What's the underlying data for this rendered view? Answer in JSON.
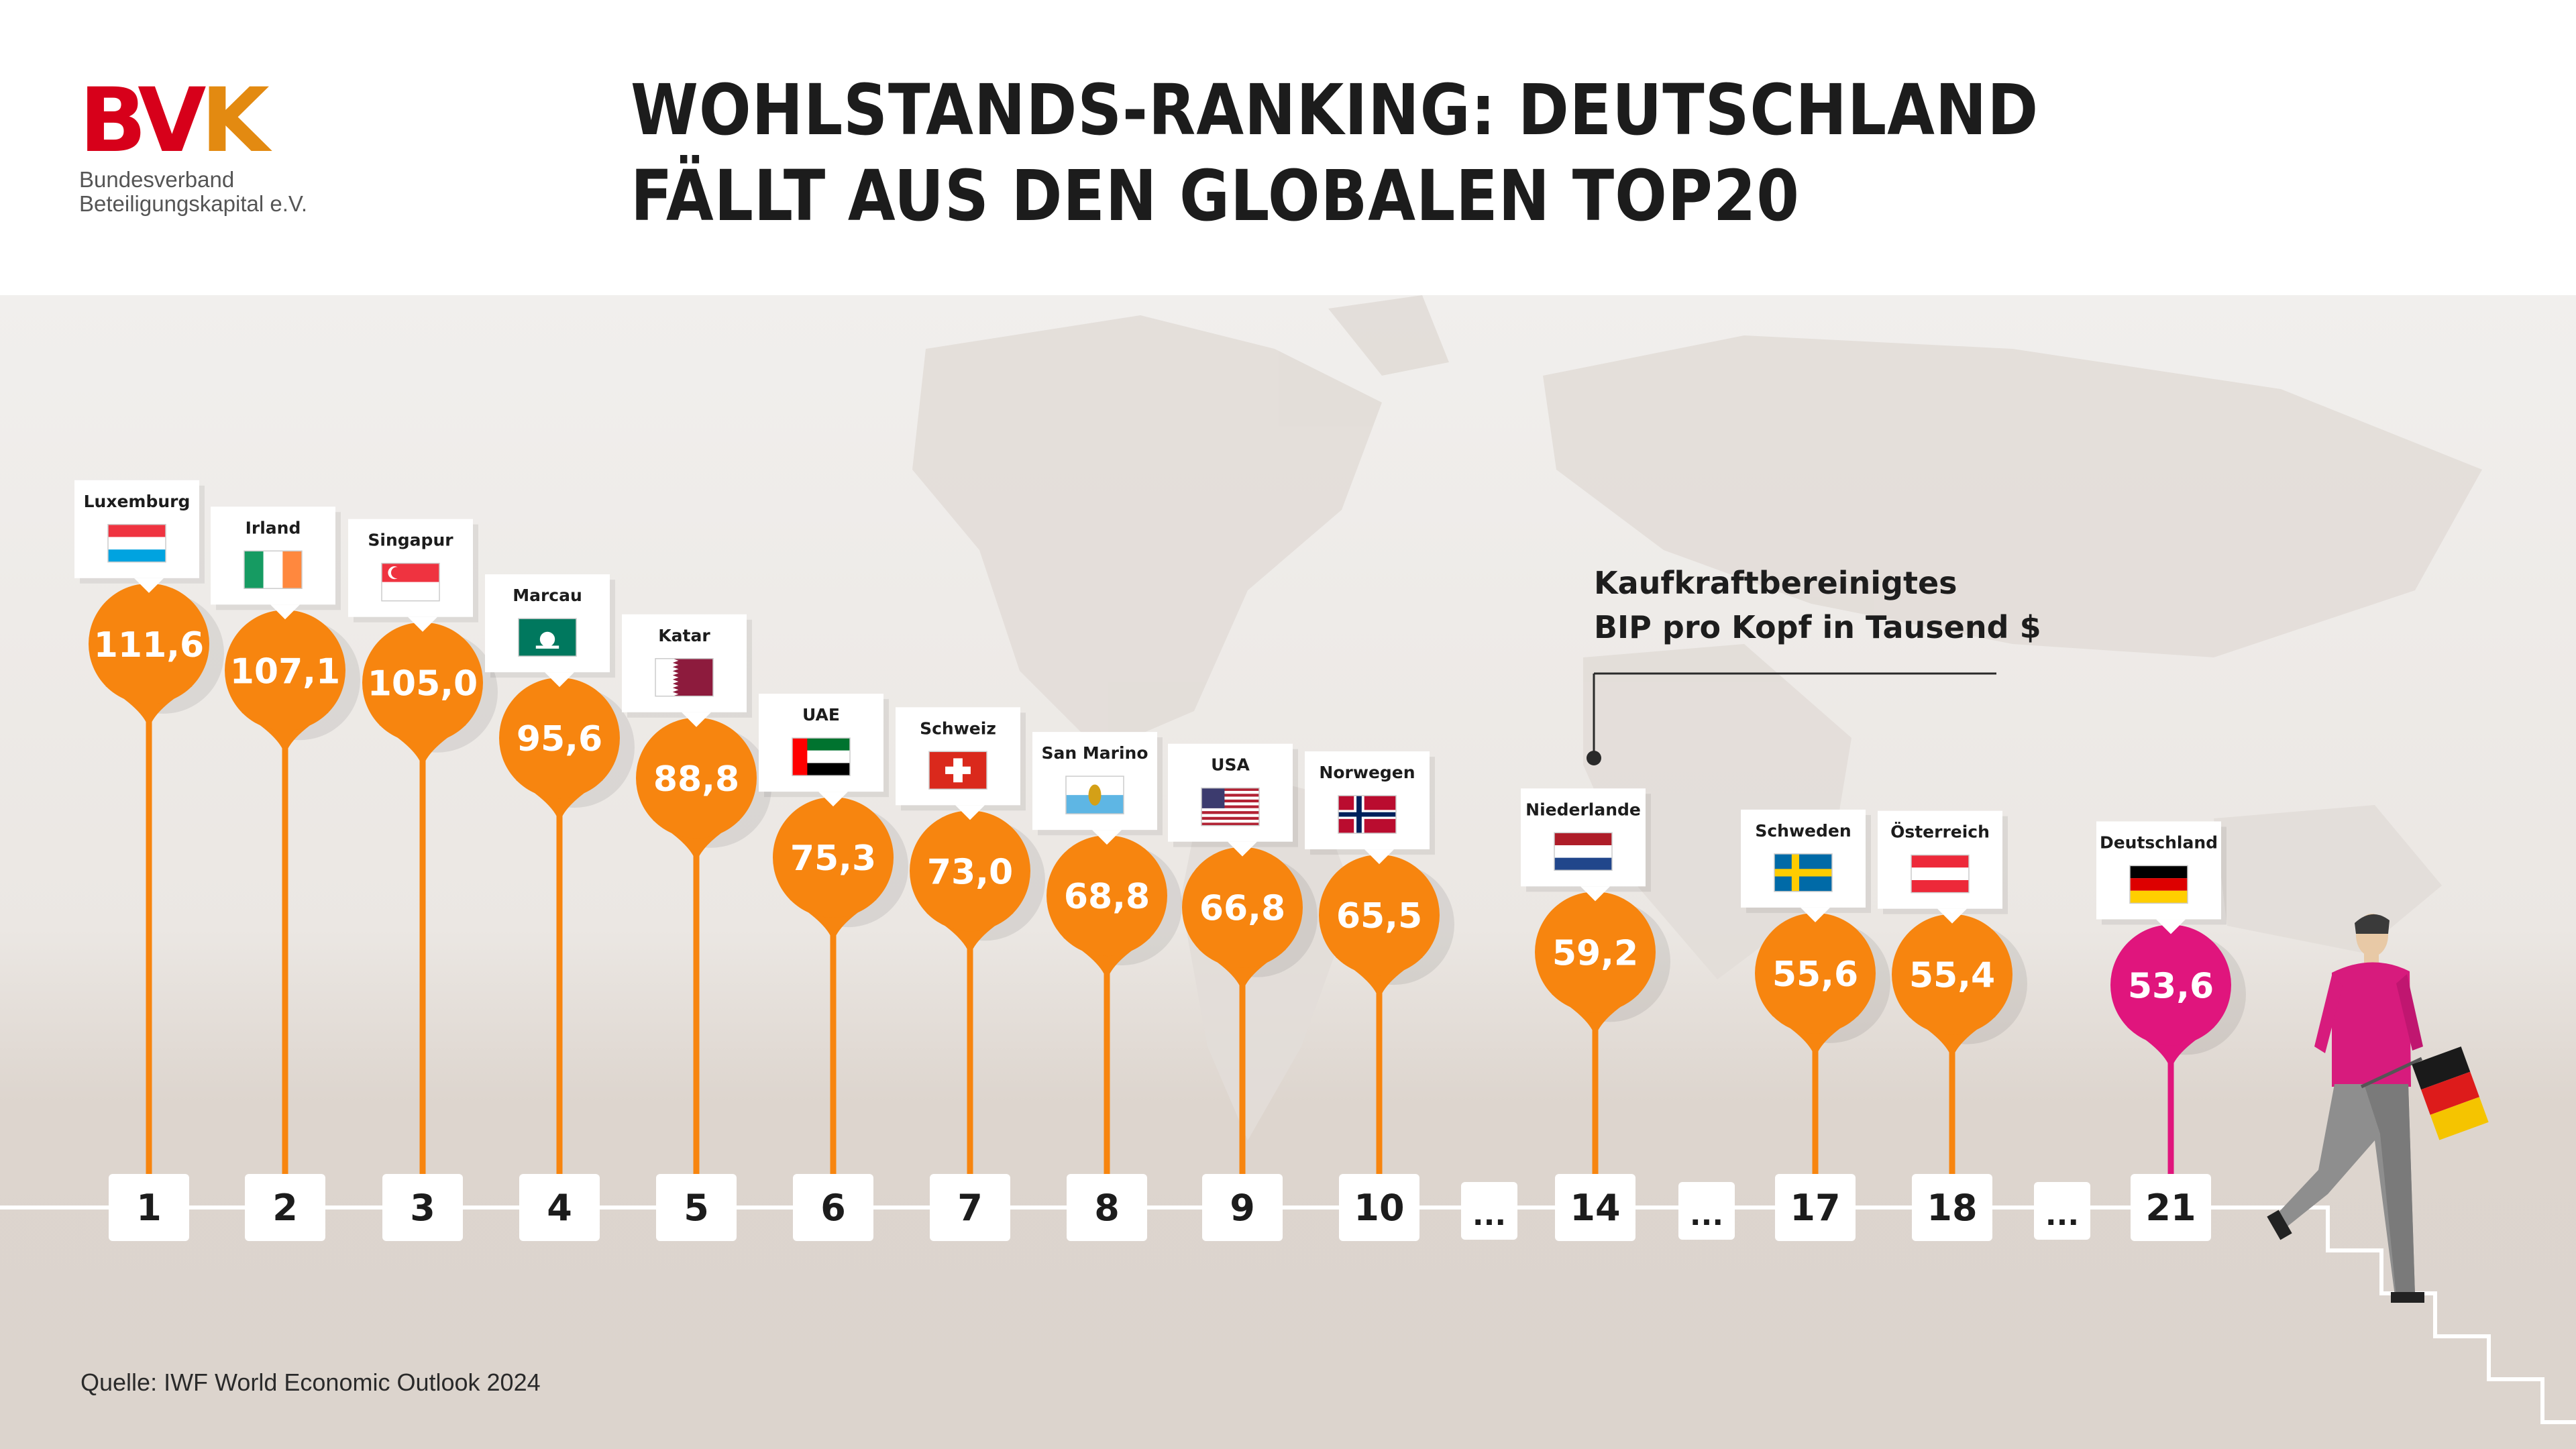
{
  "header": {
    "logo_text": "BVK",
    "logo_line1": "Bundesverband",
    "logo_line2": "Beteiligungskapital e.V.",
    "title_line1": "WOHLSTANDS-RANKING: DEUTSCHLAND",
    "title_line2": "FÄLLT AUS DEN GLOBALEN TOP20"
  },
  "note": {
    "line1": "Kaufkraftbereinigtes",
    "line2": "BIP pro Kopf in Tausend $"
  },
  "source": "Quelle: IWF World Economic Outlook 2024",
  "colors": {
    "orange": "#f7850f",
    "magenta": "#e0157d",
    "brand_red": "#d7001a",
    "text_dark": "#1c1c1c"
  },
  "chart_data": {
    "type": "bar",
    "unit": "Kaufkraftbereinigtes BIP pro Kopf in Tausend $",
    "ranks": [
      "1",
      "2",
      "3",
      "4",
      "5",
      "6",
      "7",
      "8",
      "9",
      "10",
      "14",
      "17",
      "18",
      "21"
    ],
    "categories": [
      "Luxemburg",
      "Irland",
      "Singapur",
      "Marcau",
      "Katar",
      "UAE",
      "Schweiz",
      "San  Marino",
      "USA",
      "Norwegen",
      "Niederlande",
      "Schweden",
      "Österreich",
      "Deutschland"
    ],
    "values": [
      111.6,
      107.1,
      105.0,
      95.6,
      88.8,
      75.3,
      73.0,
      68.8,
      66.8,
      65.5,
      59.2,
      55.6,
      55.4,
      53.6
    ],
    "value_labels": [
      "111,6",
      "107,1",
      "105,0",
      "95,6",
      "88,8",
      "75,3",
      "73,0",
      "68,8",
      "66,8",
      "65,5",
      "59,2",
      "55,6",
      "55,4",
      "53,6"
    ],
    "flags": [
      "flag-luxembourg",
      "flag-ireland",
      "flag-singapore",
      "flag-macau",
      "flag-qatar",
      "flag-uae",
      "flag-switzerland",
      "flag-san-marino",
      "flag-usa",
      "flag-norway",
      "flag-netherlands",
      "flag-sweden",
      "flag-austria",
      "flag-germany"
    ],
    "highlight": "Deutschland",
    "gap_label": "..."
  }
}
